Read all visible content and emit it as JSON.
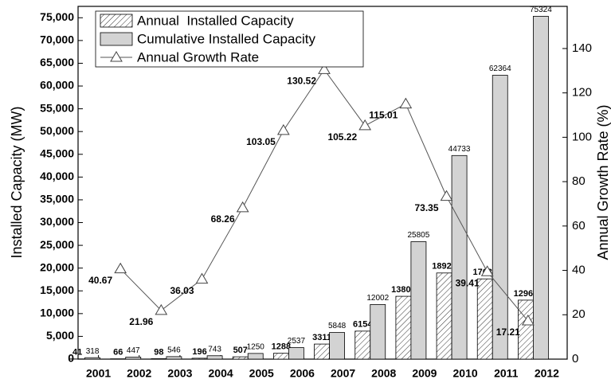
{
  "chart_data": {
    "type": "bar",
    "categories": [
      "2001",
      "2002",
      "2003",
      "2004",
      "2005",
      "2006",
      "2007",
      "2008",
      "2009",
      "2010",
      "2011",
      "2012"
    ],
    "series": [
      {
        "name": "Annual  Installed Capacity",
        "color": "#ffffff",
        "values": [
          41,
          66,
          98,
          196,
          507,
          1288,
          3311,
          6154,
          13803,
          18928,
          17631,
          12960
        ]
      },
      {
        "name": "Cumulative Installed Capacity",
        "color": "#d3d3d3",
        "values": [
          318,
          447,
          546,
          743,
          1250,
          2537,
          5848,
          12002,
          25805,
          44733,
          62364,
          75324
        ]
      },
      {
        "name": "Annual Growth Rate",
        "color": "#555555",
        "axis": "y2",
        "type": "line",
        "values": [
          null,
          40.67,
          21.96,
          36.03,
          68.26,
          103.05,
          130.52,
          105.22,
          115.01,
          73.35,
          39.41,
          17.21
        ]
      }
    ],
    "ylabel": "Installed Capacity (MW)",
    "y2label": "Annual Growth Rate (%)",
    "ylim": [
      0,
      77500
    ],
    "yticks": [
      0,
      {
        "value": 5000,
        "label": "5,000"
      },
      {
        "value": 10000,
        "label": "10,000"
      },
      {
        "value": 15000,
        "label": "15,000"
      },
      {
        "value": 20000,
        "label": "20,000"
      },
      {
        "value": 25000,
        "label": "25,000"
      },
      {
        "value": 30000,
        "label": "30,000"
      },
      {
        "value": 35000,
        "label": "35,000"
      },
      {
        "value": 40000,
        "label": "40,000"
      },
      {
        "value": 45000,
        "label": "45,000"
      },
      {
        "value": 50000,
        "label": "50,000"
      },
      {
        "value": 55000,
        "label": "55,000"
      },
      {
        "value": 60000,
        "label": "60,000"
      },
      {
        "value": 65000,
        "label": "65,000"
      },
      {
        "value": 70000,
        "label": "70,000"
      },
      {
        "value": 75000,
        "label": "75,000"
      }
    ],
    "y2lim": [
      0,
      159
    ],
    "y2ticks": [
      0,
      20,
      40,
      60,
      80,
      100,
      120,
      140
    ],
    "legend": "upper left"
  }
}
